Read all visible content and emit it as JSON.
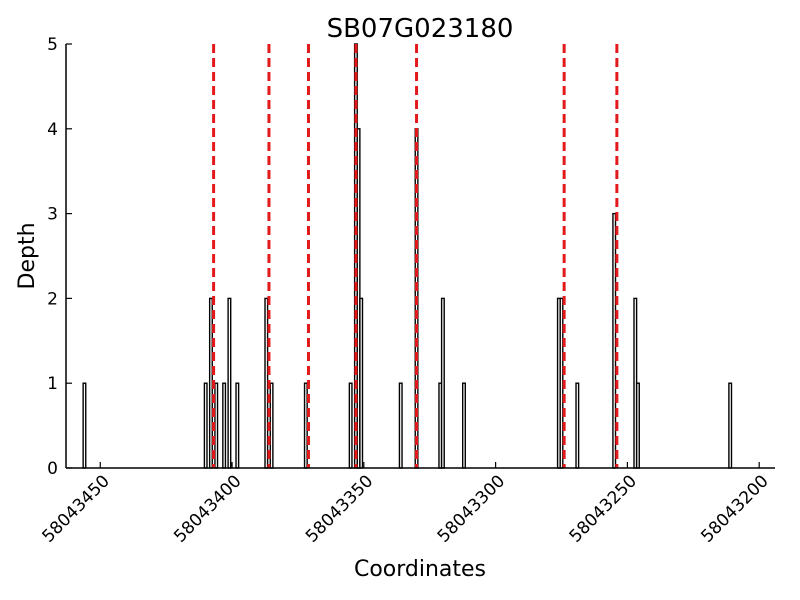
{
  "chart_data": {
    "type": "bar",
    "title": "SB07G023180",
    "xlabel": "Coordinates",
    "ylabel": "Depth",
    "xlim": [
      58043463,
      58043194
    ],
    "ylim": [
      0,
      5
    ],
    "x_reversed": true,
    "yticks": [
      0,
      1,
      2,
      3,
      4,
      5
    ],
    "xticks": [
      58043450,
      58043400,
      58043350,
      58043300,
      58043250,
      58043200
    ],
    "grid": false,
    "bar_color": "#000000",
    "bar_fill": "#ffffff",
    "bars": [
      {
        "x": 58043456,
        "value": 1
      },
      {
        "x": 58043410,
        "value": 1
      },
      {
        "x": 58043408,
        "value": 2
      },
      {
        "x": 58043406,
        "value": 1
      },
      {
        "x": 58043403,
        "value": 1
      },
      {
        "x": 58043401,
        "value": 2
      },
      {
        "x": 58043398,
        "value": 1
      },
      {
        "x": 58043387,
        "value": 2
      },
      {
        "x": 58043385,
        "value": 1
      },
      {
        "x": 58043372,
        "value": 1
      },
      {
        "x": 58043355,
        "value": 1
      },
      {
        "x": 58043353,
        "value": 5
      },
      {
        "x": 58043352,
        "value": 4
      },
      {
        "x": 58043351,
        "value": 2
      },
      {
        "x": 58043336,
        "value": 1
      },
      {
        "x": 58043330,
        "value": 4
      },
      {
        "x": 58043321,
        "value": 1
      },
      {
        "x": 58043320,
        "value": 2
      },
      {
        "x": 58043312,
        "value": 1
      },
      {
        "x": 58043276,
        "value": 2
      },
      {
        "x": 58043275,
        "value": 2
      },
      {
        "x": 58043269,
        "value": 1
      },
      {
        "x": 58043255,
        "value": 3
      },
      {
        "x": 58043247,
        "value": 2
      },
      {
        "x": 58043246,
        "value": 1
      },
      {
        "x": 58043211,
        "value": 1
      }
    ],
    "vlines": {
      "color": "#e31a1c",
      "style": "dashed",
      "x": [
        58043407,
        58043386,
        58043371,
        58043353,
        58043330,
        58043274,
        58043254
      ]
    }
  }
}
